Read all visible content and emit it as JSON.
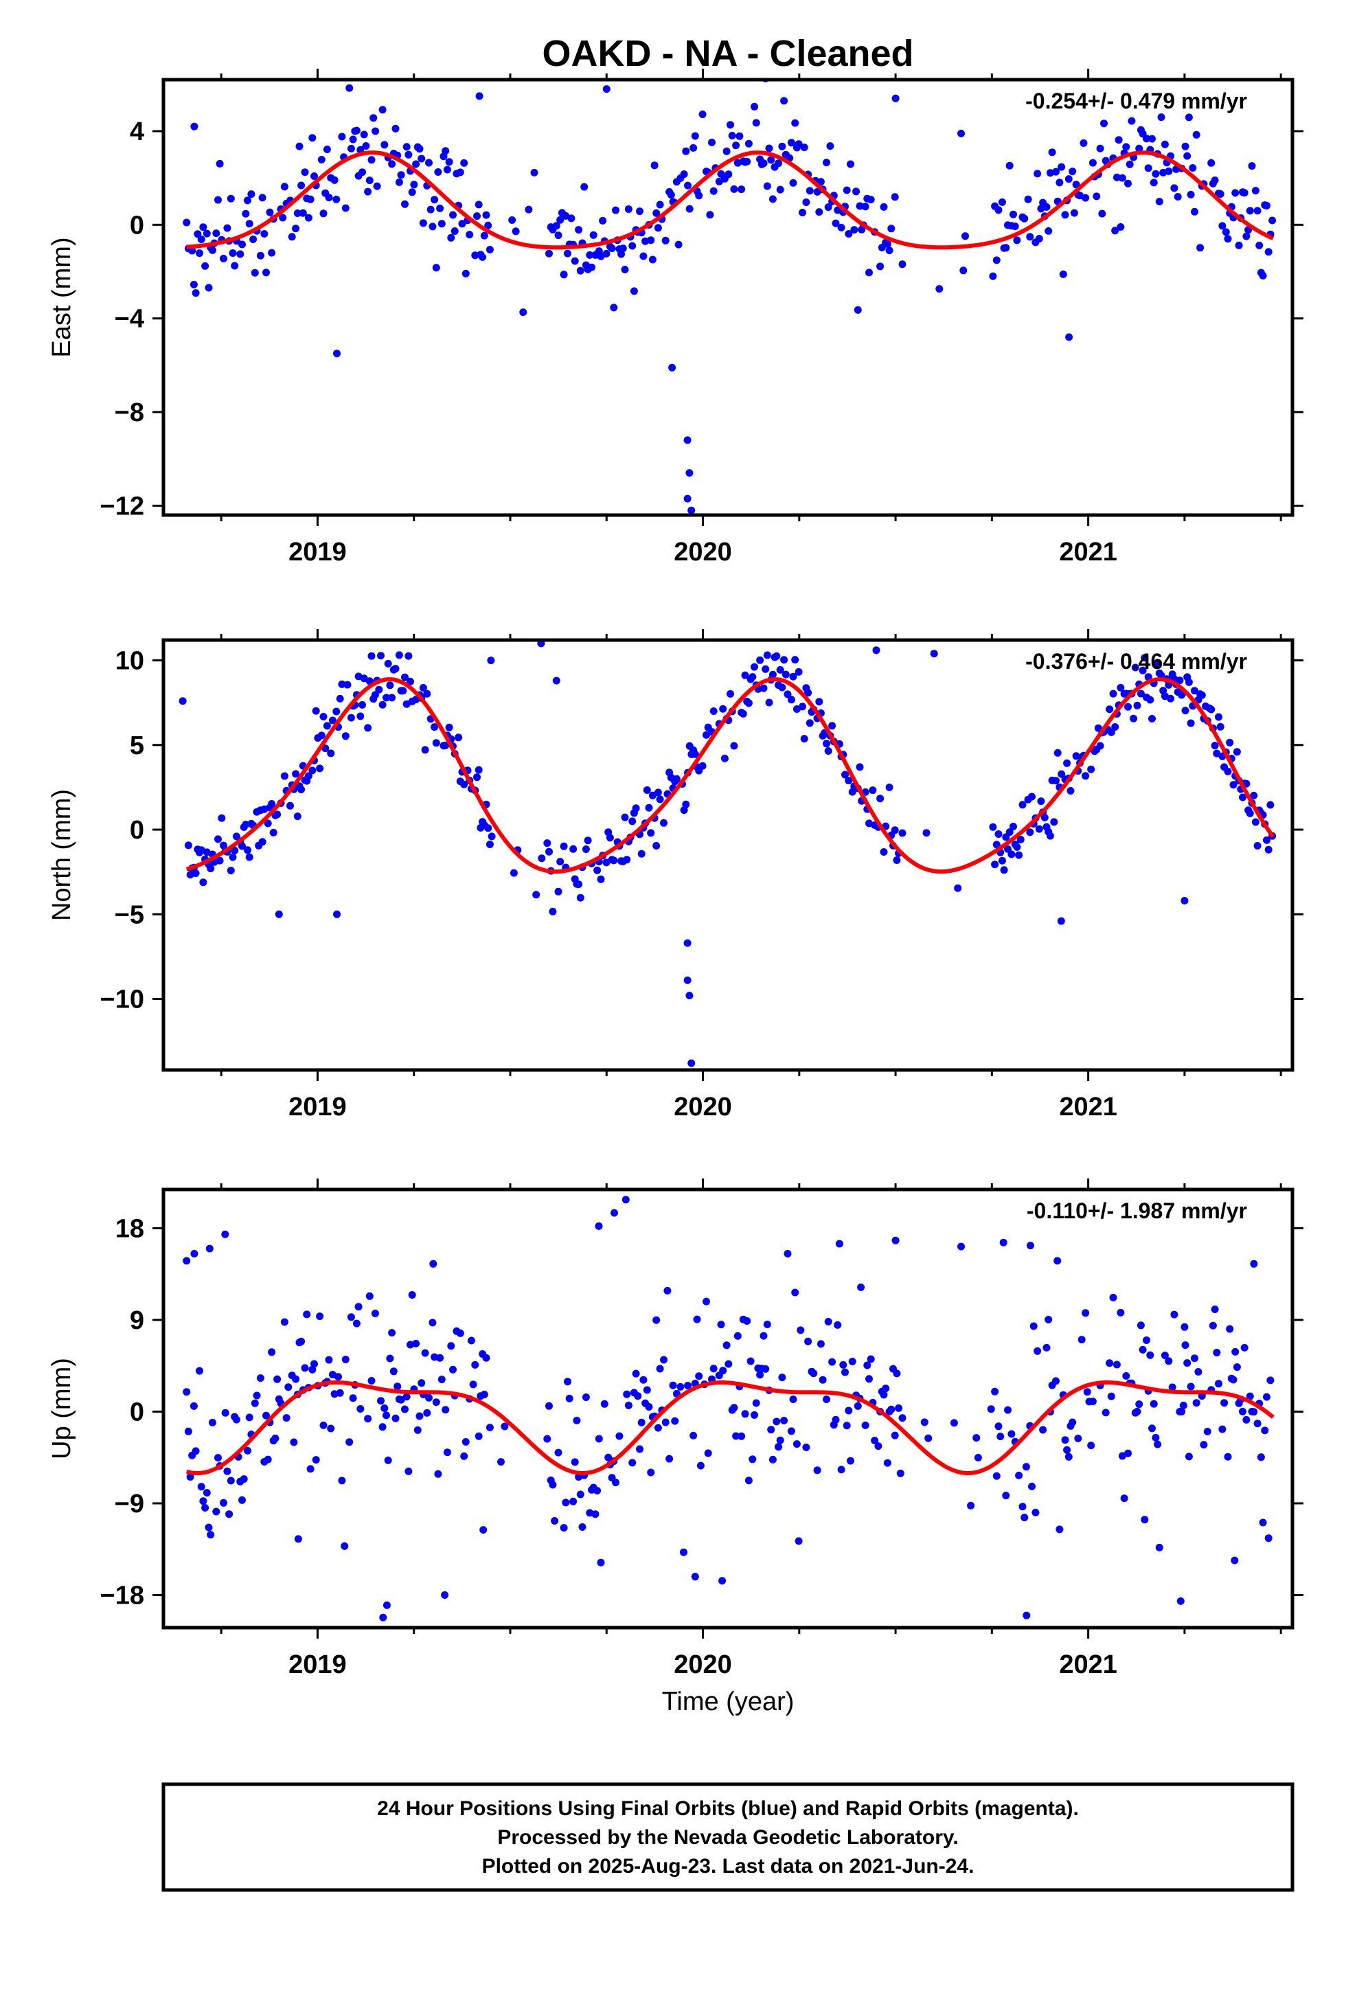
{
  "figure": {
    "title": "OAKD  - NA - Cleaned",
    "xlabel": "Time (year)",
    "footer": [
      "24 Hour Positions Using Final Orbits (blue) and Rapid Orbits (magenta).",
      "Processed by the Nevada Geodetic Laboratory.",
      "Plotted on 2025-Aug-23. Last data on 2021-Jun-24."
    ],
    "colors": {
      "points": "#0000ff",
      "model": "#ff0000",
      "axes": "#000000"
    }
  },
  "chart_data": [
    {
      "type": "scatter",
      "ylabel": "East (mm)",
      "rate_text": "-0.254+/- 0.479 mm/yr",
      "xlim": [
        2018.6,
        2021.53
      ],
      "ylim": [
        -12.4,
        6.2
      ],
      "xticks": [
        2019,
        2020,
        2021
      ],
      "yticks": [
        4,
        0,
        -4,
        -8,
        -12
      ],
      "yticklabels": [
        "4",
        "0",
        "−4",
        "−8",
        "−12"
      ],
      "model": {
        "a0": 0.7,
        "ac": 1.3,
        "as": 1.55,
        "a2c": -0.1,
        "a2s": 0.35
      },
      "noise": 1.15,
      "outliers": [
        [
          2018.68,
          4.2
        ],
        [
          2019.05,
          -5.5
        ],
        [
          2019.15,
          4.0
        ],
        [
          2019.42,
          5.5
        ],
        [
          2019.75,
          5.8
        ],
        [
          2019.92,
          -6.1
        ],
        [
          2019.96,
          -9.2
        ],
        [
          2019.96,
          -11.7
        ],
        [
          2019.97,
          -12.2
        ],
        [
          2019.965,
          -10.6
        ],
        [
          2020.5,
          5.4
        ],
        [
          2020.67,
          3.9
        ],
        [
          2020.95,
          -4.8
        ]
      ],
      "model_line": {
        "x0": 2018.66,
        "x1": 2021.48
      },
      "gaps": [
        [
          2019.45,
          2019.6
        ],
        [
          2020.52,
          2020.75
        ]
      ]
    },
    {
      "type": "scatter",
      "ylabel": "North (mm)",
      "rate_text": "-0.376+/- 0.464 mm/yr",
      "xlim": [
        2018.6,
        2021.53
      ],
      "ylim": [
        -14.2,
        11.2
      ],
      "xticks": [
        2019,
        2020,
        2021
      ],
      "yticks": [
        10,
        5,
        0,
        -5,
        -10
      ],
      "yticklabels": [
        "10",
        "5",
        "0",
        "−5",
        "−10"
      ],
      "model": {
        "a0": 2.6,
        "ac": 2.8,
        "as": 4.8,
        "a2c": -0.8,
        "a2s": 0.3
      },
      "noise": 0.9,
      "outliers": [
        [
          2018.65,
          7.6
        ],
        [
          2018.9,
          -5.0
        ],
        [
          2019.05,
          -5.0
        ],
        [
          2019.45,
          10.0
        ],
        [
          2019.58,
          11.0
        ],
        [
          2019.62,
          8.8
        ],
        [
          2019.96,
          -6.7
        ],
        [
          2019.96,
          -8.9
        ],
        [
          2019.965,
          -9.8
        ],
        [
          2019.97,
          -13.8
        ],
        [
          2020.45,
          10.6
        ],
        [
          2020.6,
          10.4
        ],
        [
          2020.93,
          -5.4
        ],
        [
          2021.25,
          -4.2
        ]
      ],
      "model_line": {
        "x0": 2018.66,
        "x1": 2021.48
      },
      "gaps": [
        [
          2019.45,
          2019.6
        ],
        [
          2020.52,
          2020.75
        ]
      ]
    },
    {
      "type": "scatter",
      "ylabel": "Up (mm)",
      "rate_text": "-0.110+/- 1.987 mm/yr",
      "xlim": [
        2018.6,
        2021.53
      ],
      "ylim": [
        -21.2,
        21.8
      ],
      "xticks": [
        2019,
        2020,
        2021
      ],
      "yticks": [
        18,
        9,
        0,
        -9,
        -18
      ],
      "yticklabels": [
        "18",
        "9",
        "0",
        "−9",
        "−18"
      ],
      "model": {
        "a0": -0.5,
        "ac": 1.9,
        "as": 3.6,
        "a2c": 1.2,
        "a2s": -0.9
      },
      "noise": 4.6,
      "outliers": [
        [
          2018.66,
          14.8
        ],
        [
          2018.68,
          15.5
        ],
        [
          2018.72,
          16.0
        ],
        [
          2018.76,
          17.4
        ],
        [
          2018.95,
          -12.5
        ],
        [
          2019.07,
          -13.2
        ],
        [
          2019.17,
          -20.2
        ],
        [
          2019.18,
          -19.0
        ],
        [
          2019.3,
          14.5
        ],
        [
          2019.33,
          -18.0
        ],
        [
          2019.43,
          -11.6
        ],
        [
          2019.73,
          18.2
        ],
        [
          2019.77,
          19.5
        ],
        [
          2019.8,
          20.8
        ],
        [
          2019.95,
          -13.8
        ],
        [
          2019.98,
          -16.2
        ],
        [
          2020.05,
          -16.6
        ],
        [
          2020.22,
          15.5
        ],
        [
          2020.41,
          12.2
        ],
        [
          2020.5,
          16.8
        ],
        [
          2020.67,
          16.2
        ],
        [
          2020.78,
          16.6
        ],
        [
          2020.84,
          -20.0
        ],
        [
          2020.85,
          16.3
        ],
        [
          2020.92,
          14.8
        ],
        [
          2021.24,
          -18.6
        ],
        [
          2021.25,
          8.3
        ],
        [
          2021.38,
          -14.6
        ],
        [
          2021.43,
          14.5
        ]
      ],
      "model_line": {
        "x0": 2018.66,
        "x1": 2021.48
      },
      "gaps": [
        [
          2019.45,
          2019.6
        ],
        [
          2020.52,
          2020.75
        ]
      ]
    }
  ]
}
